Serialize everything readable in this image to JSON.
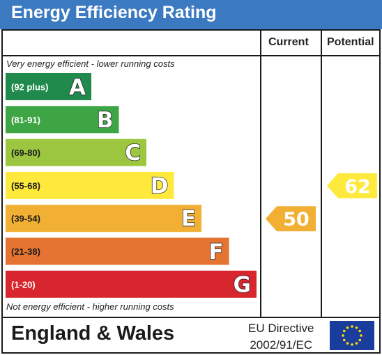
{
  "title": "Energy Efficiency Rating",
  "columns": {
    "current": "Current",
    "potential": "Potential"
  },
  "top_note": "Very energy efficient - lower running costs",
  "bottom_note": "Not energy efficient - higher running costs",
  "footer": {
    "region": "England & Wales",
    "directive_line1": "EU Directive",
    "directive_line2": "2002/91/EC",
    "flag_icon": "eu-flag-icon"
  },
  "chart_data": {
    "type": "bar",
    "title": "Energy Efficiency Rating",
    "categories": [
      "A",
      "B",
      "C",
      "D",
      "E",
      "F",
      "G"
    ],
    "ranges": [
      "(92 plus)",
      "(81-91)",
      "(69-80)",
      "(55-68)",
      "(39-54)",
      "(21-38)",
      "(1-20)"
    ],
    "colors": [
      "#1f8a4c",
      "#3da544",
      "#9cc63f",
      "#ffe93c",
      "#f1b033",
      "#e57433",
      "#d8262e"
    ],
    "current": {
      "value": 50,
      "band": "E",
      "color": "#f1b033"
    },
    "potential": {
      "value": 62,
      "band": "D",
      "color": "#ffe93c"
    }
  }
}
